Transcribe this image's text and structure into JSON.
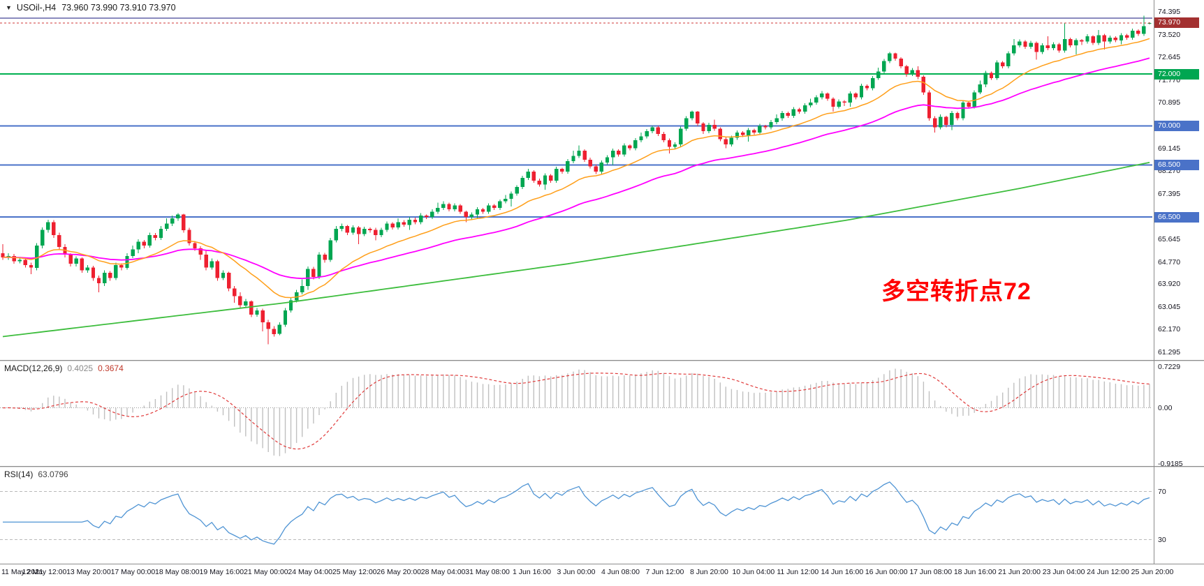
{
  "title_bar": {
    "collapse_icon": "triangle-down",
    "symbol": "USOil-,H4",
    "ohlc": "73.960 73.990 73.910 73.970"
  },
  "annotation": {
    "text": "多空转折点72",
    "color": "#ff0000"
  },
  "indicators": {
    "macd": {
      "name": "MACD(12,26,9)",
      "main_value": "0.4025",
      "signal_value": "0.3674",
      "fast": 12,
      "slow": 26,
      "signal": 9,
      "scale_min": -0.95,
      "scale_max": 0.76,
      "axis": [
        {
          "v": 0.7229,
          "t": "0.7229"
        },
        {
          "v": 0,
          "t": "0.00"
        },
        {
          "v": -0.9185,
          "t": "-0.9185"
        }
      ],
      "colors": {
        "hist": "#c0c0c0",
        "signal": "#e03a3a"
      }
    },
    "rsi": {
      "name": "RSI(14)",
      "value": "63.0796",
      "period": 14,
      "scale_min": 10,
      "scale_max": 90,
      "levels": [
        {
          "v": 70,
          "t": "70"
        },
        {
          "v": 30,
          "t": "30"
        }
      ],
      "color": "#4f94d4"
    }
  },
  "chart_data": {
    "type": "candlestick",
    "symbol": "USOil-",
    "timeframe": "H4",
    "price_min": 61.0,
    "price_max": 74.85,
    "up_color": "#00a651",
    "down_color": "#ee2030",
    "price_axis": [
      {
        "v": 74.395,
        "t": "74.395"
      },
      {
        "v": 73.52,
        "t": "73.520"
      },
      {
        "v": 72.645,
        "t": "72.645"
      },
      {
        "v": 71.77,
        "t": "71.770"
      },
      {
        "v": 70.895,
        "t": "70.895"
      },
      {
        "v": 69.145,
        "t": "69.145"
      },
      {
        "v": 68.27,
        "t": "68.270"
      },
      {
        "v": 67.395,
        "t": "67.395"
      },
      {
        "v": 65.645,
        "t": "65.645"
      },
      {
        "v": 64.77,
        "t": "64.770"
      },
      {
        "v": 63.92,
        "t": "63.920"
      },
      {
        "v": 63.045,
        "t": "63.045"
      },
      {
        "v": 62.17,
        "t": "62.170"
      },
      {
        "v": 61.295,
        "t": "61.295"
      }
    ],
    "hlines": [
      {
        "value": 74.152,
        "label": null,
        "color": "#15157d",
        "width": 1,
        "badge_color": null
      },
      {
        "value": 72.0,
        "label": "72.000",
        "color": "#00b050",
        "width": 2,
        "badge_color": "#00a651"
      },
      {
        "value": 70.0,
        "label": "70.000",
        "color": "#4a72c8",
        "width": 2,
        "badge_color": "#4a72c8"
      },
      {
        "value": 68.5,
        "label": "68.500",
        "color": "#4a72c8",
        "width": 2,
        "badge_color": "#4a72c8"
      },
      {
        "value": 66.5,
        "label": "66.500",
        "color": "#4a72c8",
        "width": 2,
        "badge_color": "#4a72c8"
      }
    ],
    "current_price": {
      "value": 73.97,
      "label": "73.970",
      "line_color": "#d03535",
      "badge_color": "#a33030"
    },
    "ma_fast": {
      "period": 18,
      "color": "#ff9f1a"
    },
    "ma_medium": {
      "period": 45,
      "color": "#ff00ff"
    },
    "ma_slow": {
      "color": "#3dbd3d",
      "anchors": [
        [
          0,
          61.9
        ],
        [
          50,
          63.2
        ],
        [
          100,
          64.7
        ],
        [
          150,
          66.4
        ],
        [
          180,
          67.6
        ],
        [
          203,
          68.6
        ]
      ]
    },
    "time_axis": [
      "11 May 2021",
      "12 May 12:00",
      "13 May 20:00",
      "17 May 00:00",
      "18 May 08:00",
      "19 May 16:00",
      "21 May 00:00",
      "24 May 04:00",
      "25 May 12:00",
      "26 May 20:00",
      "28 May 04:00",
      "31 May 08:00",
      "1 Jun 16:00",
      "3 Jun 00:00",
      "4 Jun 08:00",
      "7 Jun 12:00",
      "8 Jun 20:00",
      "10 Jun 04:00",
      "11 Jun 12:00",
      "14 Jun 16:00",
      "16 Jun 00:00",
      "17 Jun 08:00",
      "18 Jun 16:00",
      "21 Jun 20:00",
      "23 Jun 04:00",
      "24 Jun 12:00",
      "25 Jun 20:00"
    ],
    "ohlc": [
      [
        65.1,
        65.45,
        64.85,
        64.95
      ],
      [
        64.95,
        65.1,
        64.85,
        65.0
      ],
      [
        65.0,
        65.08,
        64.7,
        64.8
      ],
      [
        64.8,
        64.95,
        64.72,
        64.85
      ],
      [
        64.85,
        64.93,
        64.55,
        64.65
      ],
      [
        64.65,
        64.75,
        64.3,
        64.55
      ],
      [
        64.55,
        65.5,
        64.45,
        65.4
      ],
      [
        65.4,
        66.1,
        65.3,
        66.0
      ],
      [
        66.0,
        66.4,
        65.9,
        66.3
      ],
      [
        66.3,
        66.38,
        65.7,
        65.8
      ],
      [
        65.8,
        65.9,
        65.25,
        65.35
      ],
      [
        65.35,
        65.45,
        64.95,
        65.05
      ],
      [
        65.05,
        65.1,
        64.6,
        64.7
      ],
      [
        64.7,
        64.98,
        64.6,
        64.9
      ],
      [
        64.9,
        64.95,
        64.35,
        64.45
      ],
      [
        64.45,
        64.65,
        64.35,
        64.55
      ],
      [
        64.55,
        64.62,
        64.05,
        64.15
      ],
      [
        64.15,
        64.25,
        63.6,
        63.95
      ],
      [
        63.95,
        64.45,
        63.85,
        64.35
      ],
      [
        64.35,
        64.42,
        64.05,
        64.15
      ],
      [
        64.15,
        64.75,
        64.08,
        64.65
      ],
      [
        64.65,
        64.72,
        64.45,
        64.55
      ],
      [
        64.55,
        65.1,
        64.48,
        65.0
      ],
      [
        65.0,
        65.4,
        64.92,
        65.25
      ],
      [
        65.25,
        65.65,
        65.1,
        65.55
      ],
      [
        65.55,
        65.62,
        65.3,
        65.4
      ],
      [
        65.4,
        65.9,
        65.32,
        65.8
      ],
      [
        65.8,
        65.88,
        65.6,
        65.7
      ],
      [
        65.7,
        66.15,
        65.62,
        66.05
      ],
      [
        66.05,
        66.45,
        65.97,
        66.25
      ],
      [
        66.25,
        66.55,
        66.15,
        66.45
      ],
      [
        66.45,
        66.65,
        66.35,
        66.6
      ],
      [
        66.6,
        66.62,
        65.9,
        66.0
      ],
      [
        66.0,
        66.08,
        65.4,
        65.5
      ],
      [
        65.5,
        65.58,
        65.2,
        65.3
      ],
      [
        65.3,
        65.38,
        64.85,
        65.05
      ],
      [
        65.05,
        65.2,
        64.45,
        64.55
      ],
      [
        64.55,
        64.9,
        64.47,
        64.8
      ],
      [
        64.8,
        64.85,
        64.05,
        64.15
      ],
      [
        64.15,
        64.45,
        64.07,
        64.35
      ],
      [
        64.35,
        64.4,
        63.65,
        63.75
      ],
      [
        63.75,
        63.85,
        63.2,
        63.45
      ],
      [
        63.45,
        63.6,
        63.0,
        63.1
      ],
      [
        63.1,
        63.35,
        63.0,
        63.25
      ],
      [
        63.25,
        63.3,
        62.65,
        62.75
      ],
      [
        62.75,
        63.0,
        62.67,
        62.9
      ],
      [
        62.9,
        62.97,
        62.1,
        62.45
      ],
      [
        62.45,
        62.55,
        61.6,
        62.2
      ],
      [
        62.2,
        62.3,
        61.9,
        62.0
      ],
      [
        62.0,
        62.45,
        61.95,
        62.35
      ],
      [
        62.35,
        63.0,
        62.27,
        62.9
      ],
      [
        62.9,
        63.4,
        62.82,
        63.3
      ],
      [
        63.3,
        63.7,
        63.22,
        63.6
      ],
      [
        63.6,
        64.1,
        63.52,
        63.85
      ],
      [
        63.85,
        64.6,
        63.7,
        64.5
      ],
      [
        64.5,
        64.58,
        64.1,
        64.2
      ],
      [
        64.2,
        65.15,
        64.12,
        65.05
      ],
      [
        65.05,
        65.12,
        64.75,
        64.85
      ],
      [
        64.85,
        65.7,
        64.77,
        65.6
      ],
      [
        65.6,
        66.15,
        65.52,
        66.05
      ],
      [
        66.05,
        66.25,
        65.95,
        66.15
      ],
      [
        66.15,
        66.2,
        65.8,
        65.9
      ],
      [
        65.9,
        66.18,
        65.82,
        66.1
      ],
      [
        66.1,
        66.15,
        65.45,
        65.85
      ],
      [
        65.85,
        66.13,
        65.77,
        66.05
      ],
      [
        66.05,
        66.1,
        65.9,
        66.0
      ],
      [
        66.0,
        66.08,
        65.6,
        65.8
      ],
      [
        65.8,
        66.08,
        65.72,
        66.0
      ],
      [
        66.0,
        66.33,
        65.92,
        66.25
      ],
      [
        66.25,
        66.3,
        66.02,
        66.1
      ],
      [
        66.1,
        66.45,
        66.02,
        66.3
      ],
      [
        66.3,
        66.38,
        66.12,
        66.2
      ],
      [
        66.2,
        66.5,
        66.0,
        66.4
      ],
      [
        66.4,
        66.47,
        66.22,
        66.3
      ],
      [
        66.3,
        66.65,
        66.22,
        66.55
      ],
      [
        66.55,
        66.6,
        66.42,
        66.5
      ],
      [
        66.5,
        66.8,
        66.42,
        66.7
      ],
      [
        66.7,
        67.05,
        66.62,
        66.85
      ],
      [
        66.85,
        67.1,
        66.77,
        67.0
      ],
      [
        67.0,
        67.05,
        66.72,
        66.8
      ],
      [
        66.8,
        67.03,
        66.72,
        66.95
      ],
      [
        66.95,
        67.0,
        66.62,
        66.7
      ],
      [
        66.7,
        66.75,
        66.3,
        66.5
      ],
      [
        66.5,
        66.68,
        66.42,
        66.6
      ],
      [
        66.6,
        66.88,
        66.45,
        66.8
      ],
      [
        66.8,
        66.85,
        66.62,
        66.7
      ],
      [
        66.7,
        67.03,
        66.62,
        66.95
      ],
      [
        66.95,
        67.0,
        66.77,
        66.85
      ],
      [
        66.85,
        67.18,
        66.77,
        67.1
      ],
      [
        67.1,
        67.35,
        67.02,
        67.2
      ],
      [
        67.2,
        67.48,
        66.9,
        67.4
      ],
      [
        67.4,
        67.73,
        67.32,
        67.65
      ],
      [
        67.65,
        68.08,
        67.57,
        68.0
      ],
      [
        68.0,
        68.35,
        67.92,
        68.25
      ],
      [
        68.25,
        68.3,
        67.82,
        67.9
      ],
      [
        67.9,
        67.98,
        67.67,
        67.75
      ],
      [
        67.75,
        68.18,
        67.55,
        68.1
      ],
      [
        68.1,
        68.15,
        67.82,
        67.9
      ],
      [
        67.9,
        68.43,
        67.82,
        68.35
      ],
      [
        68.35,
        68.4,
        68.17,
        68.25
      ],
      [
        68.25,
        68.73,
        68.17,
        68.65
      ],
      [
        68.65,
        69.05,
        68.57,
        68.85
      ],
      [
        68.85,
        69.25,
        68.77,
        69.05
      ],
      [
        69.05,
        69.1,
        68.62,
        68.7
      ],
      [
        68.7,
        68.78,
        68.37,
        68.45
      ],
      [
        68.45,
        68.52,
        68.15,
        68.25
      ],
      [
        68.25,
        68.68,
        68.17,
        68.6
      ],
      [
        68.6,
        68.88,
        68.52,
        68.8
      ],
      [
        68.8,
        69.13,
        68.5,
        69.05
      ],
      [
        69.05,
        69.1,
        68.82,
        68.9
      ],
      [
        68.9,
        69.33,
        68.82,
        69.25
      ],
      [
        69.25,
        69.3,
        69.07,
        69.15
      ],
      [
        69.15,
        69.53,
        69.07,
        69.45
      ],
      [
        69.45,
        69.75,
        69.37,
        69.6
      ],
      [
        69.6,
        69.88,
        69.52,
        69.8
      ],
      [
        69.8,
        70.0,
        69.72,
        69.95
      ],
      [
        69.95,
        70.0,
        69.62,
        69.7
      ],
      [
        69.7,
        69.78,
        69.37,
        69.45
      ],
      [
        69.45,
        69.52,
        68.95,
        69.2
      ],
      [
        69.2,
        69.38,
        69.12,
        69.3
      ],
      [
        69.3,
        69.98,
        69.2,
        69.9
      ],
      [
        69.9,
        70.38,
        69.82,
        70.3
      ],
      [
        70.3,
        70.6,
        70.22,
        70.55
      ],
      [
        70.55,
        70.58,
        70.0,
        70.1
      ],
      [
        70.1,
        70.15,
        69.7,
        69.8
      ],
      [
        69.8,
        70.13,
        69.72,
        70.05
      ],
      [
        70.05,
        70.25,
        69.82,
        69.9
      ],
      [
        69.9,
        69.95,
        69.42,
        69.5
      ],
      [
        69.5,
        69.58,
        69.15,
        69.3
      ],
      [
        69.3,
        69.63,
        69.22,
        69.55
      ],
      [
        69.55,
        69.83,
        69.47,
        69.75
      ],
      [
        69.75,
        69.8,
        69.57,
        69.65
      ],
      [
        69.65,
        69.93,
        69.4,
        69.85
      ],
      [
        69.85,
        69.9,
        69.67,
        69.75
      ],
      [
        69.75,
        70.08,
        69.67,
        70.0
      ],
      [
        70.0,
        70.05,
        69.87,
        69.95
      ],
      [
        69.95,
        70.23,
        69.87,
        70.15
      ],
      [
        70.15,
        70.45,
        70.07,
        70.3
      ],
      [
        70.3,
        70.58,
        70.2,
        70.5
      ],
      [
        70.5,
        70.55,
        70.32,
        70.4
      ],
      [
        70.4,
        70.73,
        70.32,
        70.65
      ],
      [
        70.65,
        70.7,
        70.47,
        70.55
      ],
      [
        70.55,
        70.88,
        70.47,
        70.8
      ],
      [
        70.8,
        71.05,
        70.72,
        70.9
      ],
      [
        70.9,
        71.18,
        70.82,
        71.1
      ],
      [
        71.1,
        71.35,
        71.02,
        71.25
      ],
      [
        71.25,
        71.3,
        70.97,
        71.05
      ],
      [
        71.05,
        71.1,
        70.55,
        70.75
      ],
      [
        70.75,
        71.03,
        70.67,
        70.95
      ],
      [
        70.95,
        71.0,
        70.77,
        70.9
      ],
      [
        70.9,
        71.33,
        70.75,
        71.25
      ],
      [
        71.25,
        71.3,
        71.02,
        71.1
      ],
      [
        71.1,
        71.63,
        71.02,
        71.55
      ],
      [
        71.55,
        71.6,
        71.37,
        71.45
      ],
      [
        71.45,
        71.93,
        71.37,
        71.85
      ],
      [
        71.85,
        72.25,
        71.77,
        72.1
      ],
      [
        72.1,
        72.58,
        72.02,
        72.5
      ],
      [
        72.5,
        72.85,
        72.42,
        72.8
      ],
      [
        72.8,
        72.83,
        72.52,
        72.6
      ],
      [
        72.6,
        72.65,
        72.22,
        72.3
      ],
      [
        72.3,
        72.35,
        71.9,
        72.0
      ],
      [
        72.0,
        72.23,
        71.92,
        72.15
      ],
      [
        72.15,
        72.3,
        71.8,
        71.9
      ],
      [
        71.9,
        71.95,
        71.2,
        71.3
      ],
      [
        71.3,
        71.38,
        70.2,
        70.3
      ],
      [
        70.3,
        70.38,
        69.75,
        69.95
      ],
      [
        69.95,
        70.45,
        69.87,
        70.35
      ],
      [
        70.35,
        70.4,
        69.95,
        70.05
      ],
      [
        70.05,
        70.58,
        69.85,
        70.5
      ],
      [
        70.5,
        70.55,
        70.22,
        70.3
      ],
      [
        70.3,
        70.98,
        70.22,
        70.9
      ],
      [
        70.9,
        70.95,
        70.67,
        70.75
      ],
      [
        70.75,
        71.38,
        70.67,
        71.3
      ],
      [
        71.3,
        71.75,
        71.22,
        71.6
      ],
      [
        71.6,
        72.13,
        71.5,
        72.05
      ],
      [
        72.05,
        72.1,
        71.77,
        71.85
      ],
      [
        71.85,
        72.53,
        71.77,
        72.45
      ],
      [
        72.45,
        72.5,
        72.22,
        72.3
      ],
      [
        72.3,
        72.88,
        72.22,
        72.8
      ],
      [
        72.8,
        73.35,
        72.72,
        73.1
      ],
      [
        73.1,
        73.33,
        73.02,
        73.25
      ],
      [
        73.25,
        73.3,
        72.97,
        73.05
      ],
      [
        73.05,
        73.28,
        72.97,
        73.2
      ],
      [
        73.2,
        73.25,
        72.55,
        72.85
      ],
      [
        72.85,
        73.18,
        72.77,
        73.1
      ],
      [
        73.1,
        73.45,
        72.92,
        73.0
      ],
      [
        73.0,
        73.23,
        72.92,
        73.15
      ],
      [
        73.15,
        73.2,
        72.82,
        72.9
      ],
      [
        72.9,
        73.95,
        72.82,
        73.35
      ],
      [
        73.35,
        73.4,
        73.02,
        73.1
      ],
      [
        73.1,
        73.38,
        72.75,
        73.3
      ],
      [
        73.3,
        73.35,
        73.12,
        73.25
      ],
      [
        73.25,
        73.53,
        73.17,
        73.45
      ],
      [
        73.45,
        73.5,
        73.12,
        73.2
      ],
      [
        73.2,
        73.7,
        73.12,
        73.5
      ],
      [
        73.5,
        73.55,
        72.95,
        73.25
      ],
      [
        73.25,
        73.48,
        73.17,
        73.4
      ],
      [
        73.4,
        73.45,
        73.22,
        73.3
      ],
      [
        73.3,
        73.58,
        73.15,
        73.5
      ],
      [
        73.5,
        73.55,
        73.32,
        73.4
      ],
      [
        73.4,
        73.75,
        73.32,
        73.67
      ],
      [
        73.67,
        73.72,
        73.47,
        73.55
      ],
      [
        73.55,
        74.25,
        73.47,
        73.85
      ],
      [
        73.96,
        73.99,
        73.91,
        73.97
      ]
    ]
  }
}
